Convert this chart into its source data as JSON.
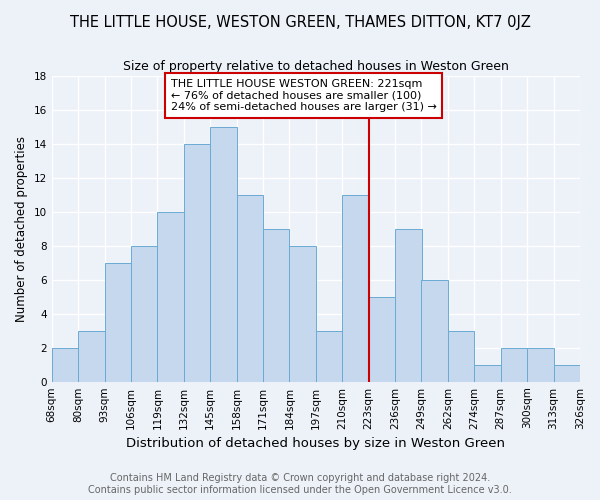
{
  "title": "THE LITTLE HOUSE, WESTON GREEN, THAMES DITTON, KT7 0JZ",
  "subtitle": "Size of property relative to detached houses in Weston Green",
  "xlabel": "Distribution of detached houses by size in Weston Green",
  "ylabel": "Number of detached properties",
  "footer_line1": "Contains HM Land Registry data © Crown copyright and database right 2024.",
  "footer_line2": "Contains public sector information licensed under the Open Government Licence v3.0.",
  "bin_labels": [
    "68sqm",
    "80sqm",
    "93sqm",
    "106sqm",
    "119sqm",
    "132sqm",
    "145sqm",
    "158sqm",
    "171sqm",
    "184sqm",
    "197sqm",
    "210sqm",
    "223sqm",
    "236sqm",
    "249sqm",
    "262sqm",
    "274sqm",
    "287sqm",
    "300sqm",
    "313sqm",
    "326sqm"
  ],
  "bar_heights": [
    2,
    3,
    7,
    8,
    10,
    14,
    15,
    11,
    9,
    8,
    3,
    11,
    5,
    9,
    6,
    3,
    1,
    2,
    2,
    1
  ],
  "bar_color": "#c5d8ed",
  "bar_edge_color": "#6aaad4",
  "vline_color": "#cc0000",
  "annotation_title": "THE LITTLE HOUSE WESTON GREEN: 221sqm",
  "annotation_line1": "← 76% of detached houses are smaller (100)",
  "annotation_line2": "24% of semi-detached houses are larger (31) →",
  "annotation_box_color": "#ffffff",
  "annotation_box_edge": "#cc0000",
  "ylim": [
    0,
    18
  ],
  "yticks": [
    0,
    2,
    4,
    6,
    8,
    10,
    12,
    14,
    16,
    18
  ],
  "background_color": "#edf2f9",
  "grid_color": "#ffffff",
  "title_fontsize": 10.5,
  "subtitle_fontsize": 9,
  "xlabel_fontsize": 9.5,
  "ylabel_fontsize": 8.5,
  "tick_fontsize": 7.5,
  "footer_fontsize": 7,
  "annotation_fontsize": 8
}
